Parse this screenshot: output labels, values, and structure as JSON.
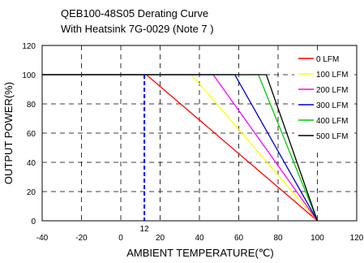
{
  "chart_data": {
    "type": "line",
    "title": [
      "QEB100-48S05 Derating Curve",
      "With Heatsink 7G-0029 (Note 7 )"
    ],
    "xlabel": "AMBIENT TEMPERATURE(℃)",
    "ylabel": "OUTPUT POWER(%)",
    "xlim": [
      -40,
      120
    ],
    "ylim": [
      0,
      120
    ],
    "xticks": [
      "-40",
      "-20",
      "0",
      "20",
      "40",
      "60",
      "80",
      "100",
      "120"
    ],
    "yticks": [
      "0",
      "20",
      "40",
      "60",
      "80",
      "100",
      "120"
    ],
    "grid": "dashed",
    "legend_position": "top-right",
    "series": [
      {
        "name": "0 LFM",
        "color": "#ff0000",
        "x": [
          -40,
          13,
          100
        ],
        "y": [
          100,
          100,
          0
        ]
      },
      {
        "name": "100 LFM",
        "color": "#ffff00",
        "x": [
          -40,
          36,
          100
        ],
        "y": [
          100,
          100,
          0
        ]
      },
      {
        "name": "200 LFM",
        "color": "#ff00ff",
        "x": [
          -40,
          47,
          100
        ],
        "y": [
          100,
          100,
          0
        ]
      },
      {
        "name": "300 LFM",
        "color": "#0000cc",
        "x": [
          -40,
          58,
          100
        ],
        "y": [
          100,
          100,
          0
        ]
      },
      {
        "name": "400 LFM",
        "color": "#00cc00",
        "x": [
          -40,
          70,
          100
        ],
        "y": [
          100,
          100,
          0
        ]
      },
      {
        "name": "500 LFM",
        "color": "#000000",
        "x": [
          -40,
          74,
          100
        ],
        "y": [
          100,
          100,
          0
        ]
      }
    ],
    "annotation": {
      "text": "12",
      "x": 12,
      "color": "#0000ff"
    }
  }
}
